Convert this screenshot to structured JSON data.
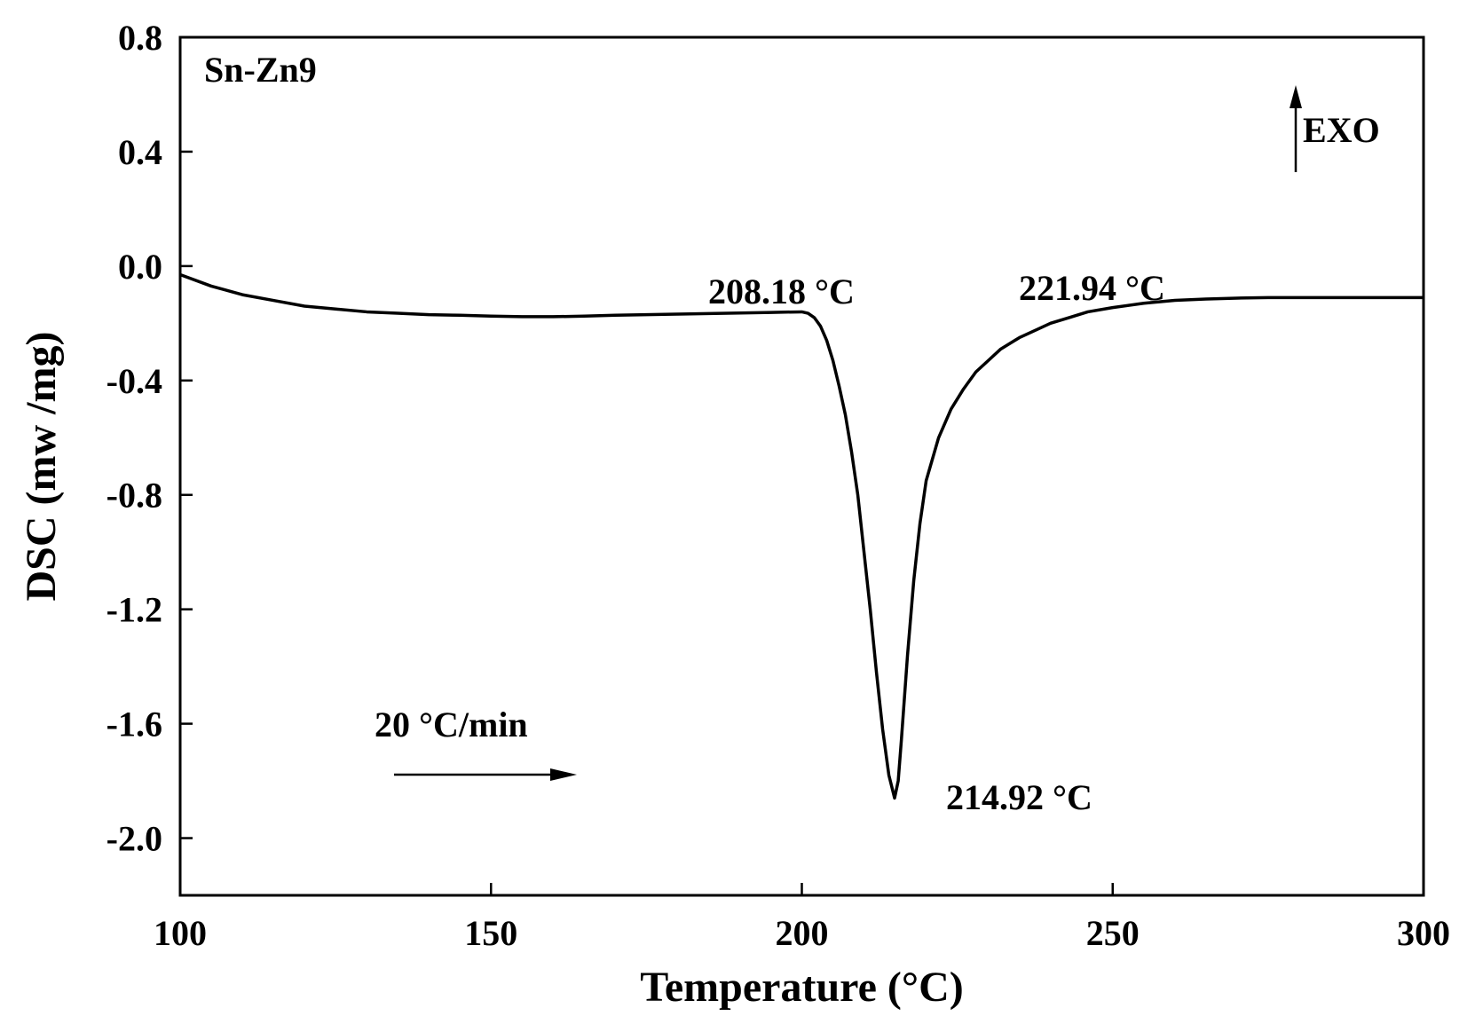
{
  "chart_data": {
    "type": "line",
    "title": "",
    "xlabel": "Temperature (°C)",
    "ylabel": "DSC (mw /mg)",
    "xlim": [
      100,
      300
    ],
    "ylim": [
      -2.2,
      0.8
    ],
    "xticks": [
      100,
      150,
      200,
      250,
      300
    ],
    "xtick_labels": [
      "100",
      "150",
      "200",
      "250",
      "300"
    ],
    "yticks": [
      0.8,
      0.4,
      0.0,
      -0.4,
      -0.8,
      -1.2,
      -1.6,
      -2.0
    ],
    "ytick_labels": [
      "0.8",
      "0.4",
      "0.0",
      "-0.4",
      "-0.8",
      "-1.2",
      "-1.6",
      "-2.0"
    ],
    "grid": false,
    "series": [
      {
        "x": [
          100,
          105,
          110,
          115,
          120,
          125,
          130,
          135,
          140,
          145,
          150,
          155,
          160,
          165,
          170,
          175,
          180,
          185,
          190,
          195,
          200,
          201,
          202,
          203,
          204,
          205,
          206,
          207,
          208,
          209,
          210,
          211,
          212,
          213,
          214,
          214.92,
          215.5,
          216,
          217,
          218,
          219,
          220,
          222,
          224,
          226,
          228,
          230,
          232,
          235,
          238,
          240,
          243,
          246,
          250,
          255,
          260,
          265,
          270,
          275,
          280,
          285,
          290,
          295,
          300
        ],
        "y": [
          -0.03,
          -0.07,
          -0.1,
          -0.12,
          -0.14,
          -0.15,
          -0.16,
          -0.165,
          -0.17,
          -0.172,
          -0.175,
          -0.177,
          -0.177,
          -0.175,
          -0.172,
          -0.17,
          -0.168,
          -0.166,
          -0.164,
          -0.162,
          -0.16,
          -0.165,
          -0.18,
          -0.21,
          -0.26,
          -0.33,
          -0.42,
          -0.52,
          -0.65,
          -0.8,
          -1.0,
          -1.2,
          -1.42,
          -1.62,
          -1.78,
          -1.86,
          -1.8,
          -1.66,
          -1.36,
          -1.1,
          -0.9,
          -0.75,
          -0.6,
          -0.5,
          -0.43,
          -0.37,
          -0.33,
          -0.29,
          -0.25,
          -0.22,
          -0.2,
          -0.18,
          -0.16,
          -0.145,
          -0.13,
          -0.12,
          -0.115,
          -0.112,
          -0.11,
          -0.11,
          -0.11,
          -0.11,
          -0.11,
          -0.11
        ],
        "color": "#000000"
      }
    ],
    "annotations": {
      "sample": "Sn-Zn9",
      "exo": "EXO",
      "onset": "208.18 °C",
      "peak": "214.92 °C",
      "endset": "221.94 °C",
      "rate": "20 °C/min"
    }
  }
}
